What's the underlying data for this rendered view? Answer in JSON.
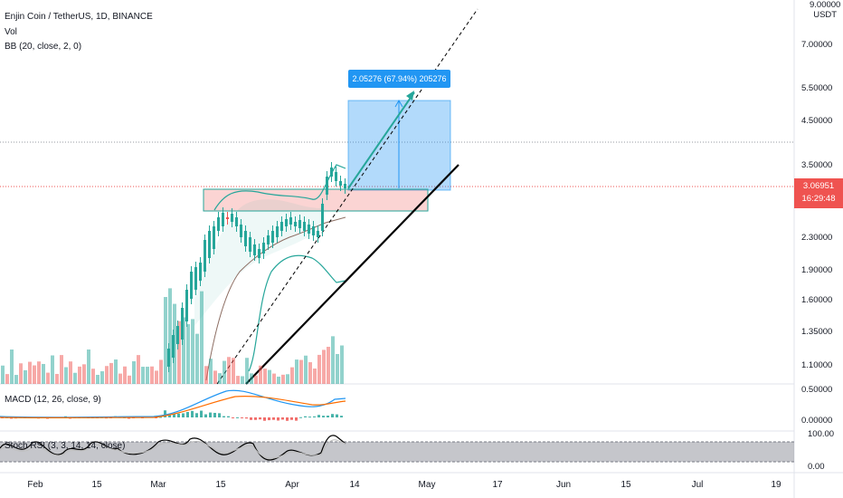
{
  "header": {
    "symbol": "Enjin Coin / TetherUS, 1D, BINANCE",
    "vol": "Vol",
    "bb": "BB (20, close, 2, 0)",
    "macd": "MACD (12, 26, close, 9)",
    "stoch": "Stoch RSI (3, 3, 14, 14, close)"
  },
  "price_axis": {
    "currency_line1": "9.00000",
    "currency_line2": "USDT",
    "labels": [
      "7.00000",
      "5.50000",
      "4.50000",
      "3.50000",
      "2.30000",
      "1.90000",
      "1.60000",
      "1.35000",
      "1.10000"
    ],
    "current_price": "3.06951",
    "countdown": "16:29:48"
  },
  "macd_axis": [
    "0.50000",
    "0.00000"
  ],
  "stoch_axis": [
    "100.00",
    "0.00"
  ],
  "time_axis": [
    "Feb",
    "15",
    "Mar",
    "15",
    "Apr",
    "14",
    "May",
    "17",
    "Jun",
    "15",
    "Jul",
    "19"
  ],
  "measure_tag": "2.05276 (67.94%) 205276",
  "colors": {
    "up": "#26a69a",
    "down": "#ef5350",
    "accent": "#2196f3",
    "bg": "#ffffff"
  }
}
